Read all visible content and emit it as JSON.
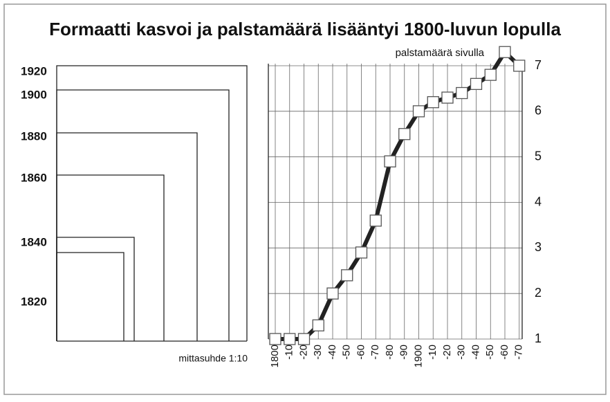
{
  "chart_data": {
    "type": "line",
    "title": "Formaatti kasvoi ja palstamäärä lisääntyi 1800-luvun lopulla",
    "y_label": "palstamäärä sivulla",
    "categories": [
      "1800",
      "-10",
      "-20",
      "-30",
      "-40",
      "-50",
      "-60",
      "-70",
      "-80",
      "-90",
      "1900",
      "-10",
      "-20",
      "-30",
      "-40",
      "-50",
      "-60",
      "-70"
    ],
    "values": [
      1,
      1,
      1,
      1.3,
      2.0,
      2.4,
      2.9,
      3.6,
      4.9,
      5.5,
      6.0,
      6.2,
      6.3,
      6.4,
      6.6,
      6.8,
      7.3,
      7.0
    ],
    "ylim": [
      1,
      7
    ],
    "yticks": [
      1,
      2,
      3,
      4,
      5,
      6,
      7
    ],
    "grid": true,
    "color": "#222222"
  },
  "formats": {
    "years": [
      "1920",
      "1900",
      "1880",
      "1860",
      "1840",
      "1820"
    ],
    "note": "mittasuhde 1:10"
  }
}
